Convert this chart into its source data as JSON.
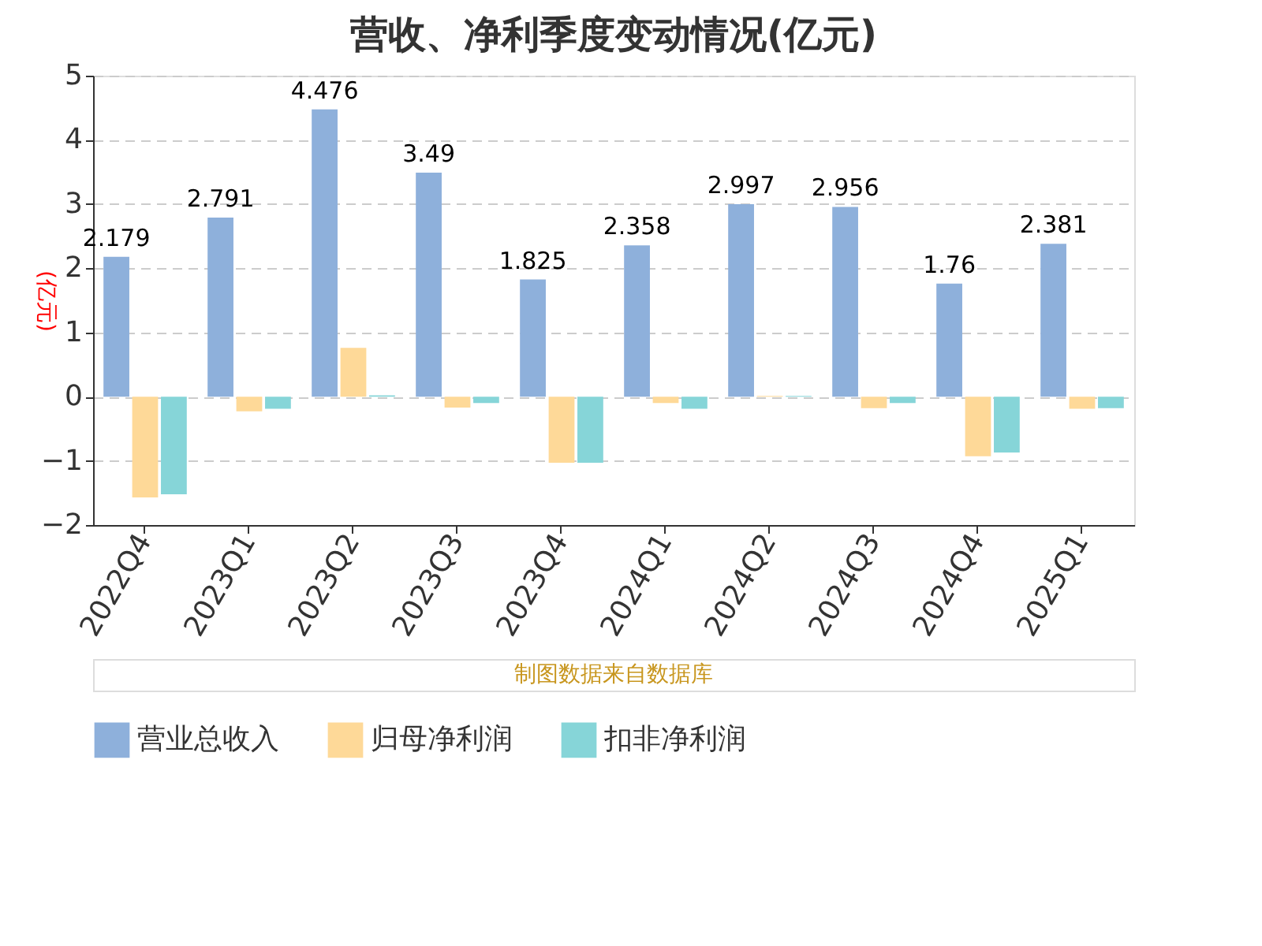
{
  "chart_data": {
    "type": "bar",
    "title": "营收、净利季度变动情况(亿元)",
    "ylabel": "(亿元)",
    "categories": [
      "2022Q4",
      "2023Q1",
      "2023Q2",
      "2023Q3",
      "2023Q4",
      "2024Q1",
      "2024Q2",
      "2024Q3",
      "2024Q4",
      "2025Q1"
    ],
    "series": [
      {
        "name": "营业总收入",
        "color": "#8eb0db",
        "values": [
          2.179,
          2.791,
          4.476,
          3.49,
          1.825,
          2.358,
          2.997,
          2.956,
          1.76,
          2.381
        ],
        "value_labels": [
          "2.179",
          "2.791",
          "4.476",
          "3.49",
          "1.825",
          "2.358",
          "2.997",
          "2.956",
          "1.76",
          "2.381"
        ]
      },
      {
        "name": "归母净利润",
        "color": "#fed998",
        "values": [
          -1.57,
          -0.23,
          0.76,
          -0.17,
          -1.03,
          -0.1,
          0.01,
          -0.18,
          -0.93,
          -0.19
        ]
      },
      {
        "name": "扣非净利润",
        "color": "#86d5d8",
        "values": [
          -1.52,
          -0.19,
          0.02,
          -0.1,
          -1.03,
          -0.19,
          0.01,
          -0.1,
          -0.87,
          -0.18
        ]
      }
    ],
    "ylim": [
      -2,
      5
    ],
    "yticks": [
      -2,
      -1,
      0,
      1,
      2,
      3,
      4,
      5
    ],
    "grid": "y",
    "legend": "bottom",
    "annotations": [
      "制图数据来自数据库"
    ]
  }
}
